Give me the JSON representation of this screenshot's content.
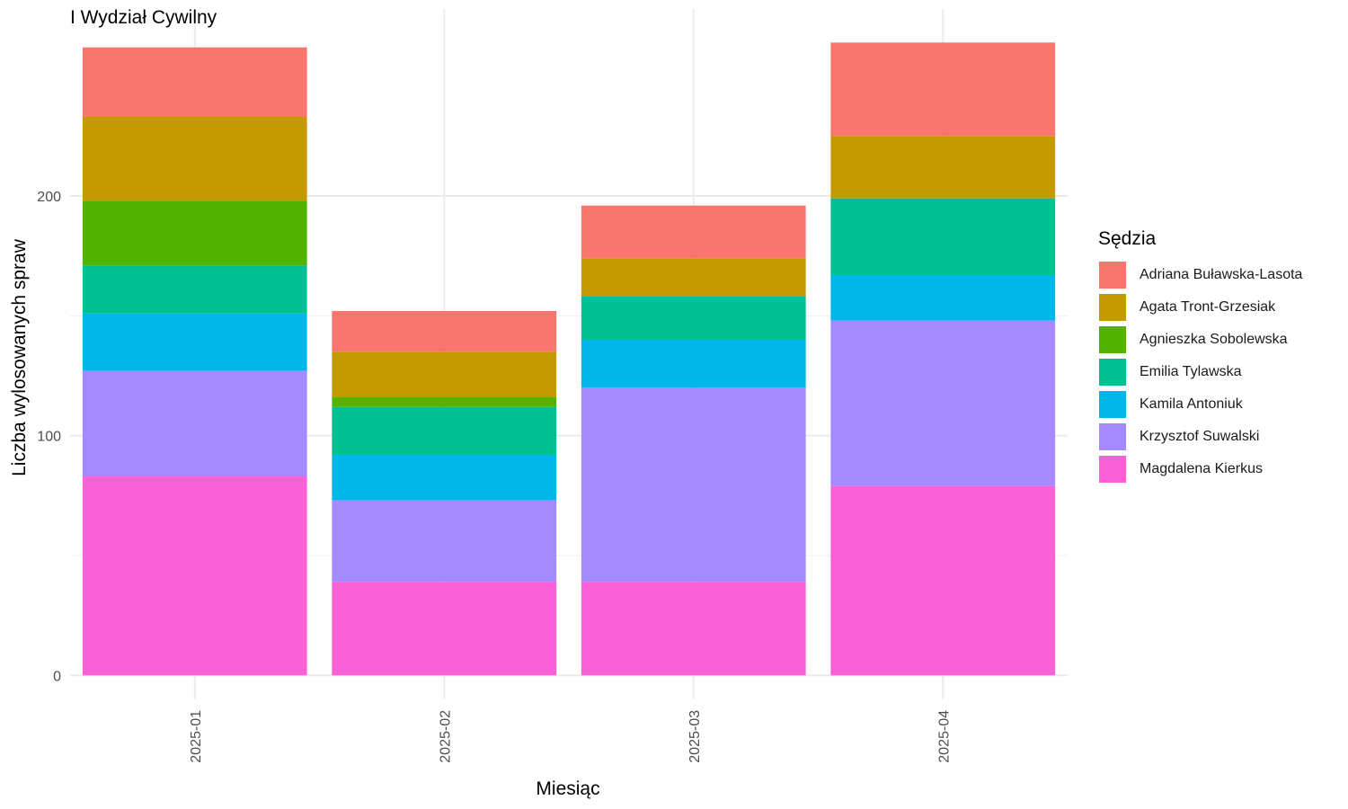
{
  "chart_data": {
    "type": "bar",
    "stacked": true,
    "title": "I Wydział Cywilny",
    "xlabel": "Miesiąc",
    "ylabel": "Liczba wylosowanych spraw",
    "legend_title": "Sędzia",
    "legend_position": "right",
    "grid": true,
    "ylim": [
      -10,
      278
    ],
    "yticks": [
      0,
      100,
      200
    ],
    "categories": [
      "2025-01",
      "2025-02",
      "2025-03",
      "2025-04"
    ],
    "series": [
      {
        "name": "Adriana Buławska-Lasota",
        "color": "#F8766D",
        "values": [
          29,
          17,
          22,
          39
        ]
      },
      {
        "name": "Agata Tront-Grzesiak",
        "color": "#C49A00",
        "values": [
          35,
          19,
          16,
          26
        ]
      },
      {
        "name": "Agnieszka Sobolewska",
        "color": "#53B400",
        "values": [
          27,
          4,
          0,
          0
        ]
      },
      {
        "name": "Emilia Tylawska",
        "color": "#00C094",
        "values": [
          20,
          20,
          18,
          32
        ]
      },
      {
        "name": "Kamila Antoniuk",
        "color": "#00B6EB",
        "values": [
          24,
          19,
          20,
          19
        ]
      },
      {
        "name": "Krzysztof Suwalski",
        "color": "#A58AFF",
        "values": [
          44,
          34,
          81,
          69
        ]
      },
      {
        "name": "Magdalena Kierkus",
        "color": "#FB61D7",
        "values": [
          83,
          39,
          39,
          79
        ]
      }
    ]
  }
}
